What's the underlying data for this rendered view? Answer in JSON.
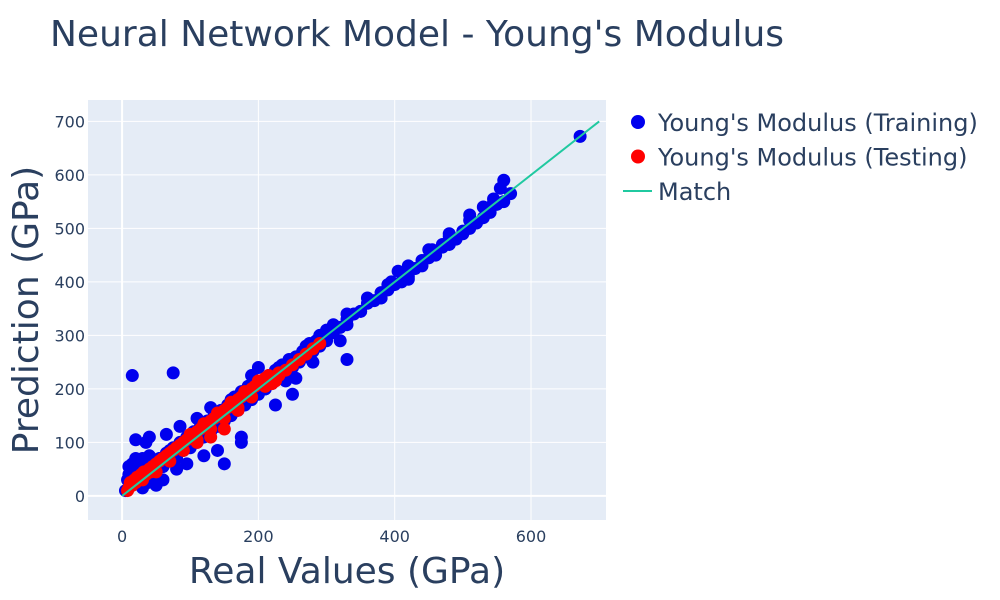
{
  "chart_data": {
    "type": "scatter",
    "title": "Neural Network Model - Young's Modulus",
    "xlabel": "Real Values (GPa)",
    "ylabel": "Prediction (GPa)",
    "xlim": [
      -50,
      710
    ],
    "ylim": [
      -45,
      740
    ],
    "x_ticks": [
      0,
      200,
      400,
      600
    ],
    "y_ticks": [
      0,
      100,
      200,
      300,
      400,
      500,
      600,
      700
    ],
    "grid": true,
    "legend_position": "top-right outside",
    "colors": {
      "training": "#0000ee",
      "testing": "#ff0000",
      "match": "#20c9a0",
      "plot_bg": "#e5ecf6"
    },
    "series": [
      {
        "name": "Young's Modulus (Training)",
        "mode": "markers",
        "x": [
          5,
          8,
          10,
          12,
          15,
          18,
          20,
          22,
          25,
          28,
          30,
          33,
          35,
          38,
          40,
          42,
          45,
          48,
          50,
          55,
          60,
          65,
          70,
          75,
          80,
          85,
          90,
          95,
          100,
          105,
          110,
          115,
          120,
          125,
          130,
          135,
          140,
          145,
          150,
          155,
          160,
          165,
          170,
          175,
          180,
          185,
          190,
          195,
          200,
          205,
          210,
          215,
          220,
          225,
          230,
          235,
          240,
          245,
          250,
          255,
          260,
          265,
          270,
          275,
          280,
          285,
          290,
          295,
          300,
          310,
          320,
          330,
          340,
          350,
          360,
          370,
          380,
          390,
          400,
          410,
          420,
          430,
          440,
          450,
          460,
          470,
          480,
          490,
          500,
          510,
          520,
          530,
          540,
          550,
          560,
          570,
          15,
          75,
          20,
          35,
          40,
          50,
          65,
          80,
          85,
          95,
          110,
          120,
          130,
          150,
          160,
          175,
          190,
          200,
          210,
          225,
          240,
          255,
          265,
          280,
          300,
          320,
          330,
          350,
          380,
          395,
          405,
          420,
          440,
          455,
          470,
          480,
          500,
          510,
          530,
          545,
          555,
          560,
          672,
          10,
          15,
          25,
          30,
          45,
          55,
          60,
          70,
          85,
          95,
          105,
          115,
          125,
          140,
          155,
          170,
          185,
          200,
          215,
          230,
          250,
          270,
          290,
          310,
          330,
          360,
          390,
          420,
          450,
          480,
          510,
          540,
          45,
          140,
          175,
          250,
          330,
          380,
          20,
          30,
          50,
          60
        ],
        "y": [
          10,
          30,
          55,
          20,
          60,
          45,
          25,
          65,
          40,
          20,
          70,
          35,
          50,
          25,
          75,
          55,
          45,
          35,
          60,
          70,
          55,
          80,
          65,
          90,
          70,
          100,
          85,
          110,
          90,
          120,
          100,
          130,
          110,
          140,
          120,
          150,
          130,
          160,
          140,
          170,
          150,
          185,
          160,
          195,
          170,
          205,
          180,
          210,
          190,
          215,
          200,
          225,
          210,
          235,
          220,
          245,
          230,
          255,
          240,
          260,
          250,
          270,
          260,
          285,
          270,
          290,
          280,
          300,
          290,
          305,
          315,
          330,
          340,
          345,
          360,
          365,
          380,
          385,
          395,
          400,
          410,
          425,
          430,
          445,
          450,
          465,
          470,
          480,
          490,
          500,
          510,
          520,
          530,
          545,
          550,
          565,
          225,
          230,
          105,
          100,
          110,
          60,
          115,
          50,
          130,
          60,
          145,
          75,
          165,
          60,
          180,
          100,
          225,
          240,
          200,
          170,
          215,
          220,
          270,
          250,
          310,
          290,
          320,
          345,
          370,
          400,
          420,
          405,
          440,
          460,
          470,
          485,
          495,
          525,
          540,
          555,
          575,
          590,
          672,
          40,
          30,
          50,
          45,
          60,
          70,
          55,
          85,
          95,
          105,
          110,
          125,
          135,
          150,
          160,
          175,
          195,
          210,
          220,
          240,
          255,
          280,
          300,
          320,
          340,
          370,
          395,
          430,
          460,
          490,
          515,
          540,
          65,
          85,
          110,
          190,
          255,
          370,
          70,
          15,
          20,
          30
        ]
      },
      {
        "name": "Young's Modulus (Testing)",
        "mode": "markers",
        "x": [
          8,
          10,
          12,
          15,
          18,
          20,
          22,
          25,
          28,
          30,
          32,
          35,
          38,
          40,
          42,
          45,
          48,
          50,
          55,
          60,
          65,
          70,
          75,
          80,
          85,
          90,
          95,
          100,
          105,
          110,
          115,
          120,
          125,
          130,
          135,
          140,
          145,
          150,
          155,
          160,
          165,
          170,
          175,
          180,
          185,
          190,
          195,
          200,
          205,
          210,
          215,
          220,
          225,
          230,
          240,
          250,
          260,
          270,
          280,
          290,
          30,
          50,
          70,
          90,
          110,
          130,
          150,
          170,
          190,
          210,
          40,
          60,
          80,
          100,
          120,
          140,
          160,
          180,
          200,
          150,
          130,
          110,
          170,
          190,
          210,
          230
        ],
        "y": [
          10,
          15,
          25,
          20,
          30,
          25,
          35,
          30,
          40,
          35,
          45,
          40,
          45,
          50,
          45,
          55,
          50,
          60,
          65,
          70,
          75,
          80,
          85,
          90,
          95,
          100,
          105,
          110,
          115,
          120,
          125,
          130,
          135,
          140,
          145,
          150,
          155,
          160,
          165,
          170,
          175,
          180,
          185,
          190,
          195,
          200,
          205,
          210,
          215,
          220,
          225,
          210,
          215,
          230,
          235,
          245,
          255,
          265,
          275,
          285,
          30,
          45,
          65,
          85,
          105,
          125,
          145,
          165,
          185,
          205,
          50,
          70,
          90,
          115,
          135,
          155,
          175,
          195,
          215,
          125,
          110,
          100,
          160,
          185,
          205,
          225
        ]
      },
      {
        "name": "Match",
        "mode": "lines",
        "x": [
          0,
          700
        ],
        "y": [
          0,
          700
        ]
      }
    ]
  }
}
